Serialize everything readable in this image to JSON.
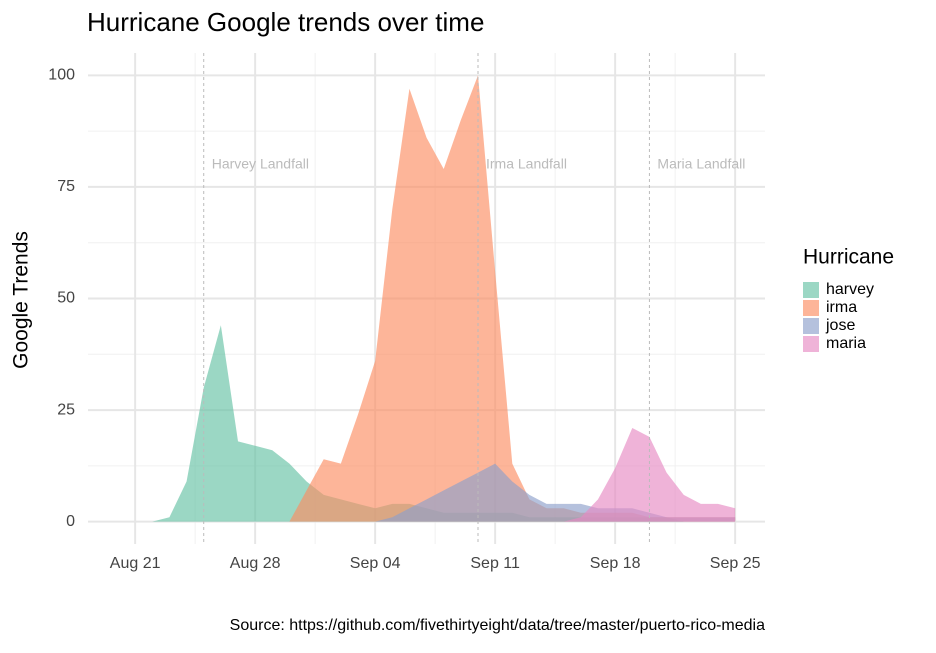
{
  "chart_data": {
    "type": "area",
    "title": "Hurricane Google trends over time",
    "ylabel": "Google Trends",
    "legend_title": "Hurricane",
    "caption": "Source: https://github.com/fivethirtyeight/data/tree/master/puerto-rico-media",
    "x": [
      "Aug 20",
      "Aug 21",
      "Aug 22",
      "Aug 23",
      "Aug 24",
      "Aug 25",
      "Aug 26",
      "Aug 27",
      "Aug 28",
      "Aug 29",
      "Aug 30",
      "Aug 31",
      "Sep 01",
      "Sep 02",
      "Sep 03",
      "Sep 04",
      "Sep 05",
      "Sep 06",
      "Sep 07",
      "Sep 08",
      "Sep 09",
      "Sep 10",
      "Sep 11",
      "Sep 12",
      "Sep 13",
      "Sep 14",
      "Sep 15",
      "Sep 16",
      "Sep 17",
      "Sep 18",
      "Sep 19",
      "Sep 20",
      "Sep 21",
      "Sep 22",
      "Sep 23",
      "Sep 24",
      "Sep 25"
    ],
    "xticks": [
      "Aug 21",
      "Aug 28",
      "Sep 04",
      "Sep 11",
      "Sep 18",
      "Sep 25"
    ],
    "ylim": [
      -5,
      105
    ],
    "yticks": [
      0,
      25,
      50,
      75,
      100
    ],
    "grid": true,
    "series": [
      {
        "name": "harvey",
        "color": "#66c2a5",
        "values": [
          0,
          0,
          0,
          1,
          9,
          30,
          44,
          18,
          17,
          16,
          13,
          9,
          6,
          5,
          4,
          3,
          4,
          4,
          3,
          2,
          2,
          2,
          2,
          2,
          1,
          1,
          1,
          1,
          1,
          1,
          1,
          1,
          1,
          0,
          0,
          0,
          0
        ]
      },
      {
        "name": "irma",
        "color": "#fc8d62",
        "values": [
          0,
          0,
          0,
          0,
          0,
          0,
          0,
          0,
          0,
          0,
          0,
          7,
          14,
          13,
          24,
          36,
          70,
          97,
          86,
          79,
          90,
          100,
          56,
          13,
          5,
          3,
          3,
          2,
          2,
          2,
          2,
          1,
          1,
          1,
          1,
          1,
          1
        ]
      },
      {
        "name": "jose",
        "color": "#8da0cb",
        "values": [
          0,
          0,
          0,
          0,
          0,
          0,
          0,
          0,
          0,
          0,
          0,
          0,
          0,
          0,
          0,
          0,
          1,
          3,
          5,
          7,
          9,
          11,
          13,
          9,
          6,
          4,
          4,
          4,
          3,
          3,
          3,
          2,
          1,
          1,
          1,
          1,
          1
        ]
      },
      {
        "name": "maria",
        "color": "#e78ac3",
        "values": [
          0,
          0,
          0,
          0,
          0,
          0,
          0,
          0,
          0,
          0,
          0,
          0,
          0,
          0,
          0,
          0,
          0,
          0,
          0,
          0,
          0,
          0,
          0,
          0,
          0,
          0,
          0,
          1,
          5,
          12,
          21,
          19,
          11,
          6,
          4,
          4,
          3
        ]
      }
    ],
    "annotations": [
      {
        "x": "Aug 25",
        "text": "Harvey Landfall"
      },
      {
        "x": "Sep 10",
        "text": "Irma Landfall"
      },
      {
        "x": "Sep 20",
        "text": "Maria Landfall"
      }
    ]
  }
}
